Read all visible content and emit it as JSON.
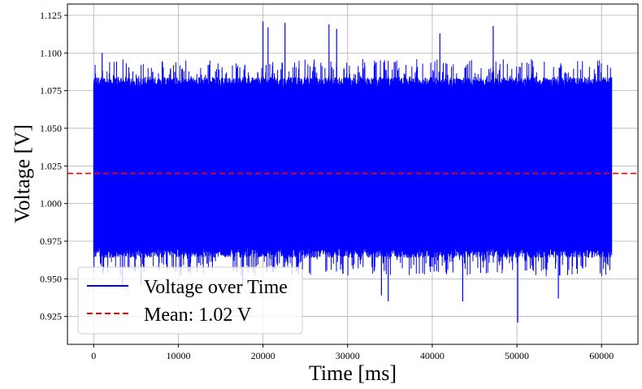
{
  "chart_data": {
    "type": "line",
    "title": "",
    "xlabel": "Time [ms]",
    "ylabel": "Voltage [V]",
    "xlim": [
      -3100,
      64300
    ],
    "ylim": [
      0.9065,
      1.1325
    ],
    "grid": true,
    "x_ticks": [
      0,
      10000,
      20000,
      30000,
      40000,
      50000,
      60000
    ],
    "x_tick_labels": [
      "0",
      "10000",
      "20000",
      "30000",
      "40000",
      "50000",
      "60000"
    ],
    "y_ticks": [
      0.925,
      0.95,
      0.975,
      1.0,
      1.025,
      1.05,
      1.075,
      1.1,
      1.125
    ],
    "y_tick_labels": [
      "0.925",
      "0.950",
      "0.975",
      "1.000",
      "1.025",
      "1.050",
      "1.075",
      "1.100",
      "1.125"
    ],
    "legend_position": "lower-left",
    "series": [
      {
        "name": "Voltage over Time",
        "color": "#0000ff",
        "style": "solid",
        "x_range": [
          0,
          61200
        ],
        "band_lower": 0.97,
        "band_upper": 1.078,
        "peaks": [
          [
            1000,
            1.1
          ],
          [
            20000,
            1.121
          ],
          [
            20600,
            1.117
          ],
          [
            22600,
            1.12
          ],
          [
            27800,
            1.119
          ],
          [
            28700,
            1.116
          ],
          [
            47200,
            1.118
          ],
          [
            40900,
            1.113
          ]
        ],
        "troughs": [
          [
            3400,
            0.945
          ],
          [
            5600,
            0.946
          ],
          [
            17600,
            0.946
          ],
          [
            34000,
            0.939
          ],
          [
            34800,
            0.935
          ],
          [
            43600,
            0.935
          ],
          [
            50100,
            0.921
          ],
          [
            54900,
            0.937
          ]
        ]
      },
      {
        "name": "Mean: 1.02 V",
        "color": "#ff0000",
        "style": "dashed",
        "value": 1.02
      }
    ]
  }
}
